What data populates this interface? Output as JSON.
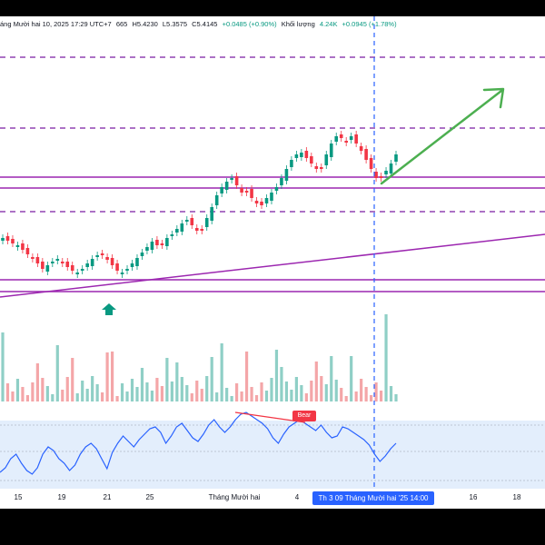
{
  "legend": {
    "open_partial": "665",
    "high": "H5.4230",
    "low": "L5.3575",
    "close": "C5.4145",
    "change": "+0.0485 (+0.90%)",
    "volume_label": "Khối lượng",
    "volume_value": "4.24K",
    "volume_change": "+0.0945 (+1.78%)",
    "date_text": "áng Mười hai 10, 2025 17:29 UTC+7"
  },
  "xaxis": {
    "ticks": [
      "15",
      "19",
      "21",
      "25",
      "Tháng Mười hai",
      "4",
      "16",
      "18"
    ],
    "cursor_label": "Th 3 09 Tháng Mười hai '25   14:00"
  },
  "annotations": {
    "rsi_bear_tag": "Bear"
  },
  "colors": {
    "up": "#089981",
    "down": "#f23645",
    "vol_up": "#8fcfc6",
    "vol_down": "#f4a6a8",
    "level_dashed": "#7b1fa2",
    "level_solid": "#9c27b0",
    "trendline": "#9c27b0",
    "arrow": "#4caf50",
    "crosshair": "#2962ff",
    "rsi_bg": "#e3eefc",
    "rsi_line": "#2962ff",
    "divergence": "#f23645"
  },
  "icons": [
    "up-arrow-marker-icon",
    "target-arrow-icon"
  ]
}
